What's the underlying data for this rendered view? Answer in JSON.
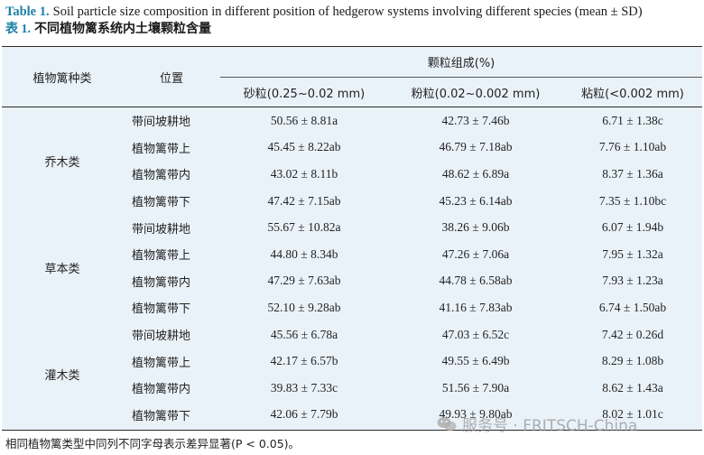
{
  "caption": {
    "en_tag": "Table 1.",
    "en_text": "Soil particle size composition in different position of hedgerow systems involving different species (mean ± SD)",
    "zh_tag": "表 1.",
    "zh_text": "不同植物篱系统内土壤颗粒含量"
  },
  "header": {
    "col_type": "植物篱种类",
    "col_position": "位置",
    "group": "颗粒组成(%)",
    "col_sand": "砂粒(0.25~0.02 mm)",
    "col_silt": "粉粒(0.02~0.002 mm)",
    "col_clay": "粘粒(<0.002 mm)"
  },
  "groups": [
    {
      "type": "乔木类",
      "rows": [
        {
          "position": "带间坡耕地",
          "sand": "50.56 ± 8.81a",
          "silt": "42.73 ± 7.46b",
          "clay": "6.71 ± 1.38c"
        },
        {
          "position": "植物篱带上",
          "sand": "45.45 ± 8.22ab",
          "silt": "46.79 ± 7.18ab",
          "clay": "7.76 ± 1.10ab"
        },
        {
          "position": "植物篱带内",
          "sand": "43.02 ± 8.11b",
          "silt": "48.62 ± 6.89a",
          "clay": "8.37 ± 1.36a"
        },
        {
          "position": "植物篱带下",
          "sand": "47.42 ± 7.15ab",
          "silt": "45.23 ± 6.14ab",
          "clay": "7.35 ± 1.10bc"
        }
      ]
    },
    {
      "type": "草本类",
      "rows": [
        {
          "position": "带间坡耕地",
          "sand": "55.67 ± 10.82a",
          "silt": "38.26 ± 9.06b",
          "clay": "6.07 ± 1.94b"
        },
        {
          "position": "植物篱带上",
          "sand": "44.80 ± 8.34b",
          "silt": "47.26 ± 7.06a",
          "clay": "7.95 ± 1.32a"
        },
        {
          "position": "植物篱带内",
          "sand": "47.29 ± 7.63ab",
          "silt": "44.78 ± 6.58ab",
          "clay": "7.93 ± 1.23a"
        },
        {
          "position": "植物篱带下",
          "sand": "52.10 ± 9.28ab",
          "silt": "41.16 ± 7.83ab",
          "clay": "6.74 ± 1.50ab"
        }
      ]
    },
    {
      "type": "灌木类",
      "rows": [
        {
          "position": "带间坡耕地",
          "sand": "45.56 ± 6.78a",
          "silt": "47.03 ± 6.52c",
          "clay": "7.42 ± 0.26d"
        },
        {
          "position": "植物篱带上",
          "sand": "42.17 ± 6.57b",
          "silt": "49.55 ± 6.49b",
          "clay": "8.29 ± 1.08b"
        },
        {
          "position": "植物篱带内",
          "sand": "39.83 ± 7.33c",
          "silt": "51.56 ± 7.90a",
          "clay": "8.62 ± 1.43a"
        },
        {
          "position": "植物篱带下",
          "sand": "42.06 ± 7.79b",
          "silt": "49.93 ± 9.80ab",
          "clay": "8.02 ± 1.01c"
        }
      ]
    }
  ],
  "footnote": "相同植物篱类型中同列不同字母表示差异显著(P < 0.05)。",
  "watermark": {
    "icon": "wechat-icon",
    "text": "服务号 · FRITSCH-China"
  }
}
